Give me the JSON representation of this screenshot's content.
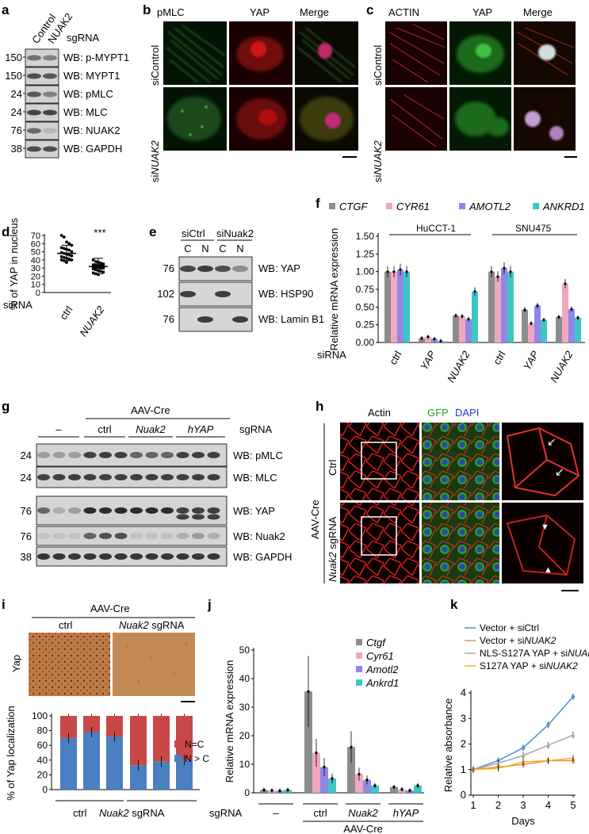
{
  "panels": {
    "a": "a",
    "b": "b",
    "c": "c",
    "d": "d",
    "e": "e",
    "f": "f",
    "g": "g",
    "h": "h",
    "i": "i",
    "j": "j",
    "k": "k"
  },
  "colors": {
    "gray": "#8c8c8c",
    "pink": "#f0a8c0",
    "purple": "#8f88e6",
    "cyan": "#3ec6c6",
    "blue": "#4a7fc1",
    "red": "#c84848",
    "orange": "#f08a3e",
    "gold": "#f2b21e",
    "lightgray": "#a8a8a8"
  },
  "a": {
    "lanes": [
      "Control",
      "NUAK2"
    ],
    "sgRNA": "sgRNA",
    "markers": [
      "150",
      "150",
      "24",
      "24",
      "76",
      "38"
    ],
    "blots": [
      "WB: p-MYPT1",
      "WB: MYPT1",
      "WB: pMLC",
      "WB: MLC",
      "WB: NUAK2",
      "WB: GAPDH"
    ]
  },
  "b": {
    "columns": [
      "pMLC",
      "YAP",
      "Merge"
    ],
    "rows": [
      "siControl",
      "si",
      "NUAK2"
    ]
  },
  "c": {
    "columns": [
      "ACTIN",
      "YAP",
      "Merge"
    ],
    "rows": [
      "siControl",
      "si",
      "NUAK2"
    ]
  },
  "d": {
    "ylabel": "% of YAP in nucleus",
    "yticks": [
      "0",
      "10",
      "20",
      "30",
      "40",
      "50",
      "60",
      "70"
    ],
    "sig": "***",
    "siRNA": "siRNA",
    "xlabels": [
      "ctrl",
      "NUAK2"
    ]
  },
  "e": {
    "groups": [
      "siCtrl",
      "siNuak2"
    ],
    "lanes": [
      "C",
      "N",
      "C",
      "N"
    ],
    "markers": [
      "76",
      "102",
      "76"
    ],
    "blots": [
      "WB: YAP",
      "WB: HSP90",
      "WB: Lamin B1"
    ]
  },
  "f": {
    "legend": [
      "CTGF",
      "CYR61",
      "AMOTL2",
      "ANKRD1"
    ],
    "lines": [
      "HuCCT-1",
      "SNU475"
    ],
    "ylabel": "Relative mRNA expression",
    "yticks": [
      "0.00",
      "0.25",
      "0.50",
      "0.75",
      "1.00",
      "1.25",
      "1.50"
    ],
    "siRNA": "siRNA",
    "xlabels": [
      "ctrl",
      "YAP",
      "NUAK2",
      "ctrl",
      "YAP",
      "NUAK2"
    ]
  },
  "g": {
    "header": "AAV-Cre",
    "groups": [
      "–",
      "ctrl",
      "Nuak2",
      "hYAP"
    ],
    "sgRNA": "sgRNA",
    "markers": [
      "24",
      "24",
      "76",
      "76",
      "38"
    ],
    "blots": [
      "WB: pMLC",
      "WB: MLC",
      "WB: YAP",
      "WB: Nuak2",
      "WB: GAPDH"
    ]
  },
  "h": {
    "columns": [
      "Actin",
      "GFP",
      "DAPI"
    ],
    "side": "AAV-Cre",
    "rows": [
      "Ctrl",
      "Nuak2",
      "sgRNA"
    ]
  },
  "i": {
    "header": "AAV-Cre",
    "columns": [
      "ctrl",
      "Nuak2",
      "sgRNA"
    ],
    "rowlabel": "Yap",
    "ylabel": "% of Yap localization",
    "yticks": [
      "0",
      "20",
      "40",
      "60",
      "80",
      "100"
    ],
    "legend": [
      "N=C",
      "N > C"
    ],
    "xlabels": [
      "ctrl",
      "Nuak2",
      "sgRNA"
    ]
  },
  "j": {
    "legend": [
      "Ctgf",
      "Cyr61",
      "Amotl2",
      "Ankrd1"
    ],
    "ylabel": "Relative mRNA expression",
    "yticks": [
      "0",
      "10",
      "20",
      "30",
      "40",
      "50"
    ],
    "sgRNA": "sgRNA",
    "xlabels": [
      "–",
      "ctrl",
      "Nuak2",
      "hYAP"
    ],
    "footer": "AAV-Cre"
  },
  "k": {
    "legend": [
      "Vector + siCtrl",
      "Vector + si",
      "NLS-S127A YAP + si",
      "S127A YAP + si"
    ],
    "legend_italic": "NUAK2",
    "ylabel": "Relative absorbance",
    "xlabel": "Days",
    "yticks": [
      "0",
      "1",
      "2",
      "3",
      "4"
    ],
    "xticks": [
      "1",
      "2",
      "3",
      "4",
      "5"
    ]
  },
  "chart_data": [
    {
      "panel": "d",
      "type": "scatter",
      "categories": [
        "ctrl",
        "NUAK2"
      ],
      "means": [
        48,
        32
      ],
      "ylim": [
        0,
        70
      ]
    },
    {
      "panel": "f",
      "type": "bar",
      "categories": [
        "ctrl",
        "YAP",
        "NUAK2",
        "ctrl",
        "YAP",
        "NUAK2"
      ],
      "ylim": [
        0,
        1.5
      ],
      "series": [
        {
          "name": "CTGF",
          "values": [
            1.0,
            0.06,
            0.38,
            1.0,
            0.46,
            0.36
          ]
        },
        {
          "name": "CYR61",
          "values": [
            1.0,
            0.08,
            0.37,
            0.93,
            0.27,
            0.83
          ]
        },
        {
          "name": "AMOTL2",
          "values": [
            1.03,
            0.05,
            0.33,
            1.05,
            0.52,
            0.47
          ]
        },
        {
          "name": "ANKRD1",
          "values": [
            1.0,
            0.02,
            0.72,
            1.0,
            0.32,
            0.35
          ]
        }
      ]
    },
    {
      "panel": "i",
      "type": "bar",
      "categories": [
        "ctrl",
        "ctrl",
        "ctrl",
        "Nuak2",
        "Nuak2",
        "Nuak2"
      ],
      "ylim": [
        0,
        100
      ],
      "series": [
        {
          "name": "N > C",
          "values": [
            70,
            78,
            72,
            33,
            38,
            40
          ]
        },
        {
          "name": "N=C",
          "values": [
            30,
            22,
            28,
            67,
            62,
            60
          ]
        }
      ]
    },
    {
      "panel": "j",
      "type": "bar",
      "categories": [
        "–",
        "ctrl",
        "Nuak2",
        "hYAP"
      ],
      "ylim": [
        0,
        50
      ],
      "series": [
        {
          "name": "Ctgf",
          "values": [
            1,
            35.5,
            16,
            2
          ]
        },
        {
          "name": "Cyr61",
          "values": [
            0.8,
            14,
            6.5,
            1.2
          ]
        },
        {
          "name": "Amotl2",
          "values": [
            0.7,
            9,
            4.5,
            0.8
          ]
        },
        {
          "name": "Ankrd1",
          "values": [
            1,
            5,
            2.5,
            2.5
          ]
        }
      ]
    },
    {
      "panel": "k",
      "type": "line",
      "x": [
        1,
        2,
        3,
        4,
        5
      ],
      "ylim": [
        0,
        4
      ],
      "series": [
        {
          "name": "Vector + siCtrl",
          "values": [
            1,
            1.35,
            1.85,
            2.75,
            3.85
          ]
        },
        {
          "name": "Vector + siNUAK2",
          "values": [
            1,
            1.1,
            1.2,
            1.35,
            1.35
          ]
        },
        {
          "name": "NLS-S127A YAP + siNUAK2",
          "values": [
            1,
            1.25,
            1.55,
            1.95,
            2.35
          ]
        },
        {
          "name": "S127A YAP + siNUAK2",
          "values": [
            1,
            1.05,
            1.3,
            1.35,
            1.45
          ]
        }
      ]
    }
  ]
}
